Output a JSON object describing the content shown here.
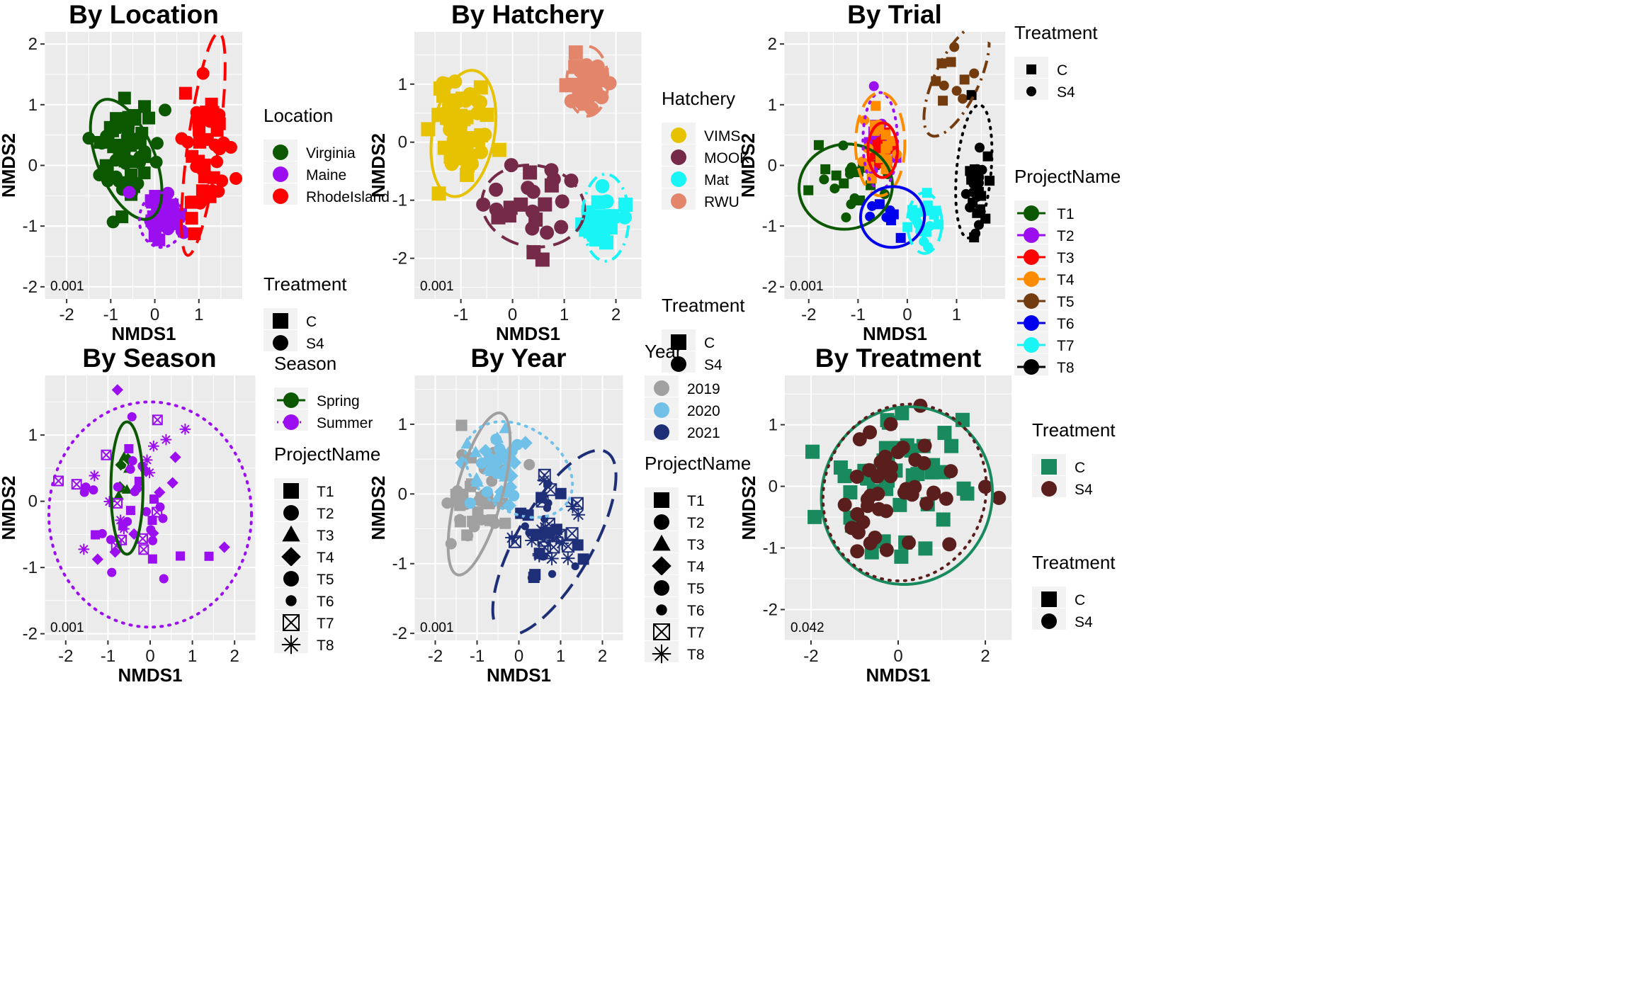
{
  "colors": {
    "panel_bg": "#EBEBEB",
    "grid": "#FFFFFF",
    "Virginia": "#0B5800",
    "Maine": "#9A0EF0",
    "RhodeIsland": "#FF0000",
    "VIMS": "#E6C200",
    "MOOK": "#742A48",
    "Mat": "#19F5F5",
    "RWU": "#E3856B",
    "T1": "#0B5800",
    "T2": "#9A0EF0",
    "T3": "#FF0000",
    "T4": "#FF8C00",
    "T5": "#743C0E",
    "T6": "#0000EE",
    "T7": "#19F5F5",
    "T8": "#000000",
    "Spring": "#0B5800",
    "Summer": "#9A0EF0",
    "2019": "#A0A0A0",
    "2020": "#71C0E8",
    "2021": "#1E2F78",
    "C": "#188A5D",
    "S4": "#5A1F1C"
  },
  "chart_data": [
    {
      "type": "scatter",
      "title": "By Location",
      "xlabel": "NMDS1",
      "ylabel": "NMDS2",
      "xlim": [
        -2.5,
        2.0
      ],
      "ylim": [
        -2.2,
        2.2
      ],
      "xticks": [
        -2,
        -1,
        0,
        1
      ],
      "yticks": [
        -2,
        -1,
        0,
        1,
        2
      ],
      "annotation": "0.001",
      "legends": [
        {
          "title": "Location",
          "entries": [
            "Virginia",
            "Maine",
            "RhodeIsland"
          ]
        },
        {
          "title": "Treatment",
          "entries": [
            "C",
            "S4"
          ]
        }
      ],
      "groups": [
        {
          "name": "Virginia",
          "center": [
            -0.6,
            0.2
          ],
          "sd": [
            0.35,
            0.4
          ],
          "n": 60,
          "ellipse": {
            "cx": -0.65,
            "cy": 0.1,
            "rx": 0.65,
            "ry": 1.05,
            "angle": -22,
            "dash": "solid"
          }
        },
        {
          "name": "Maine",
          "center": [
            0.1,
            -0.9
          ],
          "sd": [
            0.25,
            0.22
          ],
          "n": 26,
          "ellipse": {
            "cx": 0.15,
            "cy": -0.9,
            "rx": 0.5,
            "ry": 0.45,
            "angle": 0,
            "dash": "dot"
          }
        },
        {
          "name": "RhodeIsland",
          "center": [
            1.15,
            0.3
          ],
          "sd": [
            0.25,
            0.55
          ],
          "n": 45,
          "ellipse": {
            "cx": 1.1,
            "cy": 0.35,
            "rx": 0.35,
            "ry": 1.85,
            "angle": 8,
            "dash": "longdash"
          }
        }
      ]
    },
    {
      "type": "scatter",
      "title": "By Hatchery",
      "xlabel": "NMDS1",
      "ylabel": "NMDS2",
      "xlim": [
        -1.9,
        2.5
      ],
      "ylim": [
        -2.7,
        1.9
      ],
      "xticks": [
        -1,
        0,
        1,
        2
      ],
      "yticks": [
        -2,
        -1,
        0,
        1
      ],
      "annotation": "0.001",
      "legends": [
        {
          "title": "Hatchery",
          "entries": [
            "VIMS",
            "MOOK",
            "Mat",
            "RWU"
          ]
        },
        {
          "title": "Treatment",
          "entries": [
            "C",
            "S4"
          ]
        }
      ],
      "groups": [
        {
          "name": "VIMS",
          "center": [
            -1.0,
            0.3
          ],
          "sd": [
            0.3,
            0.45
          ],
          "n": 60,
          "ellipse": {
            "cx": -0.95,
            "cy": 0.15,
            "rx": 0.6,
            "ry": 1.1,
            "angle": 10,
            "dash": "solid"
          }
        },
        {
          "name": "MOOK",
          "center": [
            0.4,
            -1.1
          ],
          "sd": [
            0.4,
            0.35
          ],
          "n": 24,
          "ellipse": {
            "cx": 0.4,
            "cy": -1.1,
            "rx": 1.0,
            "ry": 0.7,
            "angle": 10,
            "dash": "longdash"
          }
        },
        {
          "name": "Mat",
          "center": [
            1.75,
            -1.3
          ],
          "sd": [
            0.2,
            0.25
          ],
          "n": 24,
          "ellipse": {
            "cx": 1.8,
            "cy": -1.3,
            "rx": 0.45,
            "ry": 0.75,
            "angle": 0,
            "dash": "dotdash"
          }
        },
        {
          "name": "RWU",
          "center": [
            1.45,
            1.0
          ],
          "sd": [
            0.2,
            0.2
          ],
          "n": 44,
          "ellipse": {
            "cx": 1.45,
            "cy": 1.05,
            "rx": 0.4,
            "ry": 0.6,
            "angle": 0,
            "dash": "longdash"
          }
        }
      ]
    },
    {
      "type": "scatter",
      "title": "By Trial",
      "xlabel": "NMDS1",
      "ylabel": "NMDS2",
      "xlim": [
        -2.5,
        2.0
      ],
      "ylim": [
        -2.2,
        2.2
      ],
      "xticks": [
        -2,
        -1,
        0,
        1
      ],
      "yticks": [
        -2,
        -1,
        0,
        1,
        2
      ],
      "annotation": "0.001",
      "legends": [
        {
          "title": "Treatment",
          "entries": [
            "C",
            "S4"
          ]
        },
        {
          "title": "ProjectName",
          "entries": [
            "T1",
            "T2",
            "T3",
            "T4",
            "T5",
            "T6",
            "T7",
            "T8"
          ]
        }
      ],
      "groups": [
        {
          "name": "T1",
          "center": [
            -1.1,
            -0.2
          ],
          "sd": [
            0.4,
            0.3
          ],
          "n": 22,
          "ellipse": {
            "cx": -1.25,
            "cy": -0.35,
            "rx": 0.95,
            "ry": 0.7,
            "angle": -10,
            "dash": "solid"
          }
        },
        {
          "name": "T2",
          "center": [
            -0.6,
            0.55
          ],
          "sd": [
            0.18,
            0.25
          ],
          "n": 16,
          "ellipse": {
            "cx": -0.55,
            "cy": 0.4,
            "rx": 0.35,
            "ry": 0.8,
            "angle": 0,
            "dash": "dot"
          }
        },
        {
          "name": "T3",
          "center": [
            -0.5,
            0.25
          ],
          "sd": [
            0.15,
            0.2
          ],
          "n": 18,
          "ellipse": {
            "cx": -0.5,
            "cy": 0.25,
            "rx": 0.3,
            "ry": 0.45,
            "angle": 0,
            "dash": "solid"
          }
        },
        {
          "name": "T4",
          "center": [
            -0.6,
            0.3
          ],
          "sd": [
            0.2,
            0.3
          ],
          "n": 24,
          "ellipse": {
            "cx": -0.55,
            "cy": 0.35,
            "rx": 0.5,
            "ry": 0.85,
            "angle": 0,
            "dash": "longdash"
          }
        },
        {
          "name": "T5",
          "center": [
            1.0,
            1.45
          ],
          "sd": [
            0.3,
            0.2
          ],
          "n": 10,
          "ellipse": {
            "cx": 1.0,
            "cy": 1.4,
            "rx": 0.45,
            "ry": 1.0,
            "angle": 25,
            "dash": "dotdash"
          }
        },
        {
          "name": "T6",
          "center": [
            -0.55,
            -0.95
          ],
          "sd": [
            0.3,
            0.2
          ],
          "n": 8,
          "ellipse": {
            "cx": -0.3,
            "cy": -0.85,
            "rx": 0.65,
            "ry": 0.5,
            "angle": -10,
            "dash": "solid"
          }
        },
        {
          "name": "T7",
          "center": [
            0.35,
            -0.95
          ],
          "sd": [
            0.15,
            0.22
          ],
          "n": 22,
          "ellipse": {
            "cx": 0.35,
            "cy": -0.95,
            "rx": 0.35,
            "ry": 0.5,
            "angle": 0,
            "dash": "longdash"
          }
        },
        {
          "name": "T8",
          "center": [
            1.35,
            -0.1
          ],
          "sd": [
            0.12,
            0.45
          ],
          "n": 34,
          "ellipse": {
            "cx": 1.35,
            "cy": -0.1,
            "rx": 0.35,
            "ry": 1.1,
            "angle": 5,
            "dash": "dot"
          }
        }
      ]
    },
    {
      "type": "scatter",
      "title": "By Season",
      "xlabel": "NMDS1",
      "ylabel": "NMDS2",
      "xlim": [
        -2.5,
        2.5
      ],
      "ylim": [
        -2.1,
        1.9
      ],
      "xticks": [
        -2,
        -1,
        0,
        1,
        2
      ],
      "yticks": [
        -2,
        -1,
        0,
        1
      ],
      "annotation": "0.001",
      "legends": [
        {
          "title": "Season",
          "entries": [
            "Spring",
            "Summer"
          ]
        },
        {
          "title": "ProjectName",
          "entries": [
            "T1",
            "T2",
            "T3",
            "T4",
            "T5",
            "T6",
            "T7",
            "T8"
          ]
        }
      ],
      "groups": [
        {
          "name": "Spring",
          "center": [
            -0.6,
            0.35
          ],
          "sd": [
            0.1,
            0.25
          ],
          "n": 10,
          "ellipse": {
            "cx": -0.55,
            "cy": 0.2,
            "rx": 0.38,
            "ry": 1.0,
            "angle": 0,
            "dash": "solid"
          }
        },
        {
          "name": "Summer",
          "center": [
            -0.3,
            0.0
          ],
          "sd": [
            0.8,
            0.7
          ],
          "n": 60,
          "ellipse": {
            "cx": 0.0,
            "cy": -0.2,
            "rx": 2.4,
            "ry": 1.7,
            "angle": 0,
            "dash": "dot"
          }
        }
      ]
    },
    {
      "type": "scatter",
      "title": "By Year",
      "xlabel": "NMDS1",
      "ylabel": "NMDS2",
      "xlim": [
        -2.5,
        2.5
      ],
      "ylim": [
        -2.1,
        1.7
      ],
      "xticks": [
        -2,
        -1,
        0,
        1,
        2
      ],
      "yticks": [
        -2,
        -1,
        0,
        1
      ],
      "annotation": "0.001",
      "legends": [
        {
          "title": "Year",
          "entries": [
            "2019",
            "2020",
            "2021"
          ]
        },
        {
          "title": "ProjectName",
          "entries": [
            "T1",
            "T2",
            "T3",
            "T4",
            "T5",
            "T6",
            "T7",
            "T8"
          ]
        }
      ],
      "groups": [
        {
          "name": "2019",
          "center": [
            -1.0,
            -0.1
          ],
          "sd": [
            0.35,
            0.4
          ],
          "n": 40,
          "ellipse": {
            "cx": -0.95,
            "cy": 0.0,
            "rx": 0.55,
            "ry": 1.2,
            "angle": 15,
            "dash": "solid"
          }
        },
        {
          "name": "2020",
          "center": [
            -0.5,
            0.4
          ],
          "sd": [
            0.3,
            0.3
          ],
          "n": 40,
          "ellipse": {
            "cx": 0.0,
            "cy": 0.35,
            "rx": 1.4,
            "ry": 0.6,
            "angle": 35,
            "dash": "dot"
          }
        },
        {
          "name": "2021",
          "center": [
            0.7,
            -0.6
          ],
          "sd": [
            0.4,
            0.35
          ],
          "n": 50,
          "ellipse": {
            "cx": 0.85,
            "cy": -0.7,
            "rx": 0.9,
            "ry": 1.5,
            "angle": 30,
            "dash": "longdash"
          }
        }
      ]
    },
    {
      "type": "scatter",
      "title": "By Treatment",
      "xlabel": "NMDS1",
      "ylabel": "NMDS2",
      "xlim": [
        -2.6,
        2.6
      ],
      "ylim": [
        -2.5,
        1.8
      ],
      "xticks": [
        -2,
        0,
        2
      ],
      "yticks": [
        -2,
        -1,
        0,
        1
      ],
      "annotation": "0.042",
      "legends": [
        {
          "title": "Treatment",
          "entries": [
            "C",
            "S4"
          ]
        },
        {
          "title": "Treatment",
          "entries": [
            "C",
            "S4"
          ]
        }
      ],
      "groups": [
        {
          "name": "C",
          "center": [
            0.0,
            -0.1
          ],
          "sd": [
            0.9,
            0.6
          ],
          "n": 45,
          "ellipse": {
            "cx": 0.2,
            "cy": -0.15,
            "rx": 1.95,
            "ry": 1.45,
            "angle": 20,
            "dash": "solid"
          }
        },
        {
          "name": "S4",
          "center": [
            0.0,
            -0.05
          ],
          "sd": [
            0.85,
            0.55
          ],
          "n": 45,
          "ellipse": {
            "cx": 0.15,
            "cy": -0.1,
            "rx": 1.85,
            "ry": 1.45,
            "angle": 20,
            "dash": "dot"
          }
        }
      ]
    }
  ]
}
